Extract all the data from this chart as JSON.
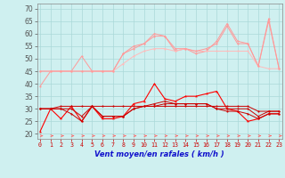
{
  "x": [
    0,
    1,
    2,
    3,
    4,
    5,
    6,
    7,
    8,
    9,
    10,
    11,
    12,
    13,
    14,
    15,
    16,
    17,
    18,
    19,
    20,
    21,
    22,
    23
  ],
  "line1": [
    39,
    45,
    45,
    45,
    51,
    45,
    45,
    45,
    52,
    55,
    56,
    60,
    59,
    53,
    54,
    52,
    53,
    57,
    64,
    57,
    56,
    47,
    66,
    46
  ],
  "line2": [
    45,
    45,
    45,
    45,
    45,
    45,
    45,
    45,
    48,
    51,
    53,
    54,
    54,
    53,
    54,
    53,
    53,
    53,
    53,
    53,
    53,
    47,
    46,
    46
  ],
  "line4": [
    45,
    45,
    45,
    45,
    45,
    45,
    45,
    45,
    52,
    54,
    56,
    59,
    59,
    54,
    54,
    53,
    54,
    56,
    63,
    56,
    56,
    47,
    65,
    46
  ],
  "line5": [
    21,
    30,
    26,
    31,
    25,
    31,
    26,
    26,
    27,
    32,
    33,
    40,
    34,
    33,
    35,
    35,
    36,
    37,
    30,
    29,
    25,
    26,
    28,
    28
  ],
  "line6": [
    30,
    30,
    30,
    28,
    25,
    31,
    27,
    27,
    27,
    30,
    31,
    32,
    33,
    32,
    32,
    32,
    32,
    30,
    30,
    30,
    30,
    27,
    29,
    29
  ],
  "line7": [
    30,
    30,
    31,
    31,
    31,
    31,
    31,
    31,
    31,
    31,
    31,
    31,
    31,
    31,
    31,
    31,
    31,
    31,
    31,
    31,
    31,
    29,
    29,
    29
  ],
  "line8": [
    30,
    30,
    30,
    30,
    27,
    31,
    27,
    27,
    27,
    30,
    31,
    31,
    32,
    32,
    32,
    32,
    32,
    30,
    29,
    29,
    28,
    26,
    28,
    28
  ],
  "bg_color": "#cff0f0",
  "grid_color": "#aad8d8",
  "line1_color": "#ff9999",
  "line2_color": "#ffbbbb",
  "line4_color": "#ff9999",
  "line5_color": "#ff0000",
  "line6_color": "#cc0000",
  "line7_color": "#cc0000",
  "line8_color": "#cc0000",
  "xlabel": "Vent moyen/en rafales ( km/h )",
  "ylabel_ticks": [
    20,
    25,
    30,
    35,
    40,
    45,
    50,
    55,
    60,
    65,
    70
  ],
  "ylim": [
    18,
    72
  ],
  "xlim": [
    -0.3,
    23.3
  ],
  "arrow_color": "#ff6666"
}
